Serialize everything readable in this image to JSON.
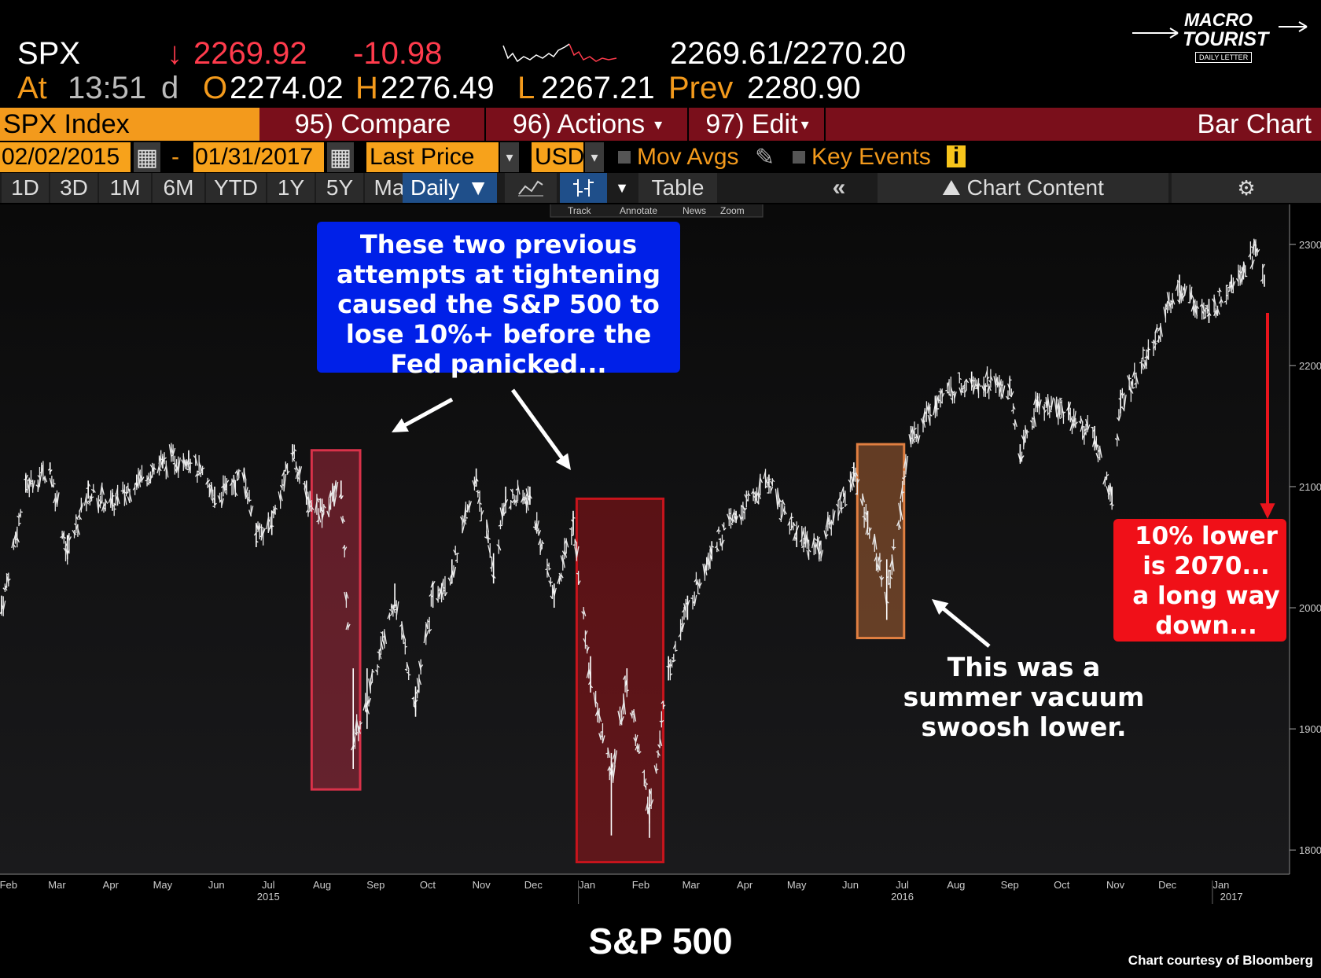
{
  "quote": {
    "ticker": "SPX",
    "arrow": "↓",
    "last": "2269.92",
    "change": "-10.98",
    "bid_ask": "2269.61/2270.20",
    "at_label": "At",
    "time": "13:51",
    "d_label": "d",
    "o_label": "O",
    "open": "2274.02",
    "h_label": "H",
    "high": "2276.49",
    "l_label": "L",
    "low": "2267.21",
    "prev_label": "Prev",
    "prev": "2280.90"
  },
  "logo": {
    "line1": "MACRO",
    "line2": "TOURIST",
    "line3": "DAILY LETTER"
  },
  "toolbar": {
    "security": "SPX Index",
    "compare": "95) Compare",
    "actions": "96) Actions",
    "edit": "97) Edit",
    "chart_type": "Bar Chart",
    "date_from": "02/02/2015",
    "date_sep": "-",
    "date_to": "01/31/2017",
    "price_field": "Last Price",
    "currency": "USD",
    "mov_avgs": "Mov Avgs",
    "key_events": "Key Events",
    "periods": [
      "1D",
      "3D",
      "1M",
      "6M",
      "YTD",
      "1Y",
      "5Y",
      "Max"
    ],
    "frequency": "Daily",
    "table": "Table",
    "chart_content": "Chart Content",
    "sub_tools": [
      "Track",
      "Annotate",
      "News",
      "Zoom"
    ]
  },
  "chart_data": {
    "type": "bar",
    "title": "S&P 500",
    "credit": "Chart courtesy of Bloomberg",
    "x_range": [
      "2015-02-02",
      "2017-01-31"
    ],
    "ylim": [
      1780,
      2320
    ],
    "y_ticks": [
      1800,
      1900,
      2000,
      2100,
      2200,
      2300
    ],
    "x_ticks": [
      {
        "date": "2015-02-06",
        "label": "Feb"
      },
      {
        "date": "2015-03-06",
        "label": "Mar"
      },
      {
        "date": "2015-04-06",
        "label": "Apr"
      },
      {
        "date": "2015-05-06",
        "label": "May"
      },
      {
        "date": "2015-06-06",
        "label": "Jun"
      },
      {
        "date": "2015-07-06",
        "label": "Jul"
      },
      {
        "date": "2015-08-06",
        "label": "Aug"
      },
      {
        "date": "2015-09-06",
        "label": "Sep"
      },
      {
        "date": "2015-10-06",
        "label": "Oct"
      },
      {
        "date": "2015-11-06",
        "label": "Nov"
      },
      {
        "date": "2015-12-06",
        "label": "Dec"
      },
      {
        "date": "2016-01-06",
        "label": "Jan"
      },
      {
        "date": "2016-02-06",
        "label": "Feb"
      },
      {
        "date": "2016-03-06",
        "label": "Mar"
      },
      {
        "date": "2016-04-06",
        "label": "Apr"
      },
      {
        "date": "2016-05-06",
        "label": "May"
      },
      {
        "date": "2016-06-06",
        "label": "Jun"
      },
      {
        "date": "2016-07-06",
        "label": "Jul"
      },
      {
        "date": "2016-08-06",
        "label": "Aug"
      },
      {
        "date": "2016-09-06",
        "label": "Sep"
      },
      {
        "date": "2016-10-06",
        "label": "Oct"
      },
      {
        "date": "2016-11-06",
        "label": "Nov"
      },
      {
        "date": "2016-12-06",
        "label": "Dec"
      },
      {
        "date": "2017-01-06",
        "label": "Jan"
      }
    ],
    "year_labels": [
      {
        "date": "2015-07-06",
        "label": "2015"
      },
      {
        "date": "2016-07-06",
        "label": "2016"
      },
      {
        "date": "2017-01-12",
        "label": "2017"
      }
    ],
    "series": [
      {
        "x": [
          "2015-02-02",
          "2015-02-16",
          "2015-03-02",
          "2015-03-12",
          "2015-03-24",
          "2015-04-07",
          "2015-04-21",
          "2015-05-06",
          "2015-05-21",
          "2015-06-05",
          "2015-06-22",
          "2015-06-29",
          "2015-07-08",
          "2015-07-20",
          "2015-07-28",
          "2015-08-06",
          "2015-08-17",
          "2015-08-24",
          "2015-09-01",
          "2015-09-17",
          "2015-09-29",
          "2015-10-09",
          "2015-10-20",
          "2015-11-03",
          "2015-11-13",
          "2015-11-20",
          "2015-12-04",
          "2015-12-18",
          "2015-12-29",
          "2016-01-08",
          "2016-01-20",
          "2016-01-29",
          "2016-02-11",
          "2016-02-22",
          "2016-03-04",
          "2016-03-18",
          "2016-04-01",
          "2016-04-20",
          "2016-05-06",
          "2016-05-19",
          "2016-06-08",
          "2016-06-16",
          "2016-06-27",
          "2016-07-11",
          "2016-07-25",
          "2016-08-15",
          "2016-09-06",
          "2016-09-12",
          "2016-09-22",
          "2016-10-10",
          "2016-10-25",
          "2016-11-04",
          "2016-11-09",
          "2016-11-25",
          "2016-12-13",
          "2016-12-30",
          "2017-01-12",
          "2017-01-26",
          "2017-01-31"
        ],
        "values": [
          2000,
          2100,
          2115,
          2045,
          2095,
          2085,
          2105,
          2120,
          2125,
          2090,
          2110,
          2060,
          2070,
          2130,
          2090,
          2080,
          2100,
          1890,
          1920,
          2010,
          1920,
          2010,
          2030,
          2105,
          2030,
          2090,
          2090,
          2010,
          2070,
          1940,
          1860,
          1940,
          1830,
          1950,
          2000,
          2050,
          2075,
          2105,
          2060,
          2050,
          2110,
          2070,
          2010,
          2140,
          2170,
          2190,
          2180,
          2125,
          2170,
          2160,
          2140,
          2090,
          2170,
          2210,
          2265,
          2240,
          2270,
          2295,
          2270
        ],
        "bar_ranges": [
          [
            1995,
            2010
          ],
          [
            2095,
            2110
          ],
          [
            2110,
            2120
          ],
          [
            2040,
            2060
          ],
          [
            2090,
            2105
          ],
          [
            2080,
            2095
          ],
          [
            2100,
            2110
          ],
          [
            2115,
            2125
          ],
          [
            2120,
            2130
          ],
          [
            2085,
            2100
          ],
          [
            2105,
            2115
          ],
          [
            2050,
            2070
          ],
          [
            2060,
            2080
          ],
          [
            2125,
            2135
          ],
          [
            2085,
            2105
          ],
          [
            2075,
            2090
          ],
          [
            2090,
            2105
          ],
          [
            1867,
            1950
          ],
          [
            1900,
            1950
          ],
          [
            2000,
            2020
          ],
          [
            1910,
            1935
          ],
          [
            2000,
            2020
          ],
          [
            2020,
            2040
          ],
          [
            2100,
            2115
          ],
          [
            2020,
            2045
          ],
          [
            2085,
            2100
          ],
          [
            2085,
            2100
          ],
          [
            2000,
            2020
          ],
          [
            2060,
            2080
          ],
          [
            1930,
            1960
          ],
          [
            1812,
            1880
          ],
          [
            1930,
            1950
          ],
          [
            1810,
            1850
          ],
          [
            1940,
            1960
          ],
          [
            1990,
            2010
          ],
          [
            2040,
            2055
          ],
          [
            2070,
            2080
          ],
          [
            2100,
            2110
          ],
          [
            2050,
            2065
          ],
          [
            2040,
            2055
          ],
          [
            2105,
            2120
          ],
          [
            2065,
            2080
          ],
          [
            1990,
            2040
          ],
          [
            2135,
            2150
          ],
          [
            2165,
            2175
          ],
          [
            2185,
            2195
          ],
          [
            2175,
            2190
          ],
          [
            2120,
            2135
          ],
          [
            2165,
            2175
          ],
          [
            2155,
            2170
          ],
          [
            2135,
            2150
          ],
          [
            2085,
            2100
          ],
          [
            2160,
            2180
          ],
          [
            2205,
            2215
          ],
          [
            2260,
            2275
          ],
          [
            2235,
            2255
          ],
          [
            2265,
            2275
          ],
          [
            2290,
            2300
          ],
          [
            2265,
            2275
          ]
        ]
      }
    ],
    "highlights": [
      {
        "start": "2015-07-31",
        "end": "2015-08-28",
        "low": 1850,
        "high": 2130,
        "color": "#d9324a"
      },
      {
        "start": "2015-12-31",
        "end": "2016-02-19",
        "low": 1790,
        "high": 2090,
        "color": "#c8141c"
      },
      {
        "start": "2016-06-10",
        "end": "2016-07-07",
        "low": 1975,
        "high": 2135,
        "color": "#e07f41"
      }
    ],
    "annotations": {
      "blue_box": [
        "These two previous",
        "attempts at tightening",
        "caused the S&P 500 to",
        "lose 10%+ before the",
        "Fed panicked..."
      ],
      "summer_text": [
        "This was a",
        "summer vacuum",
        "swoosh lower."
      ],
      "red_box": [
        "10% lower",
        "is 2070...",
        "a long way",
        "down..."
      ]
    }
  }
}
